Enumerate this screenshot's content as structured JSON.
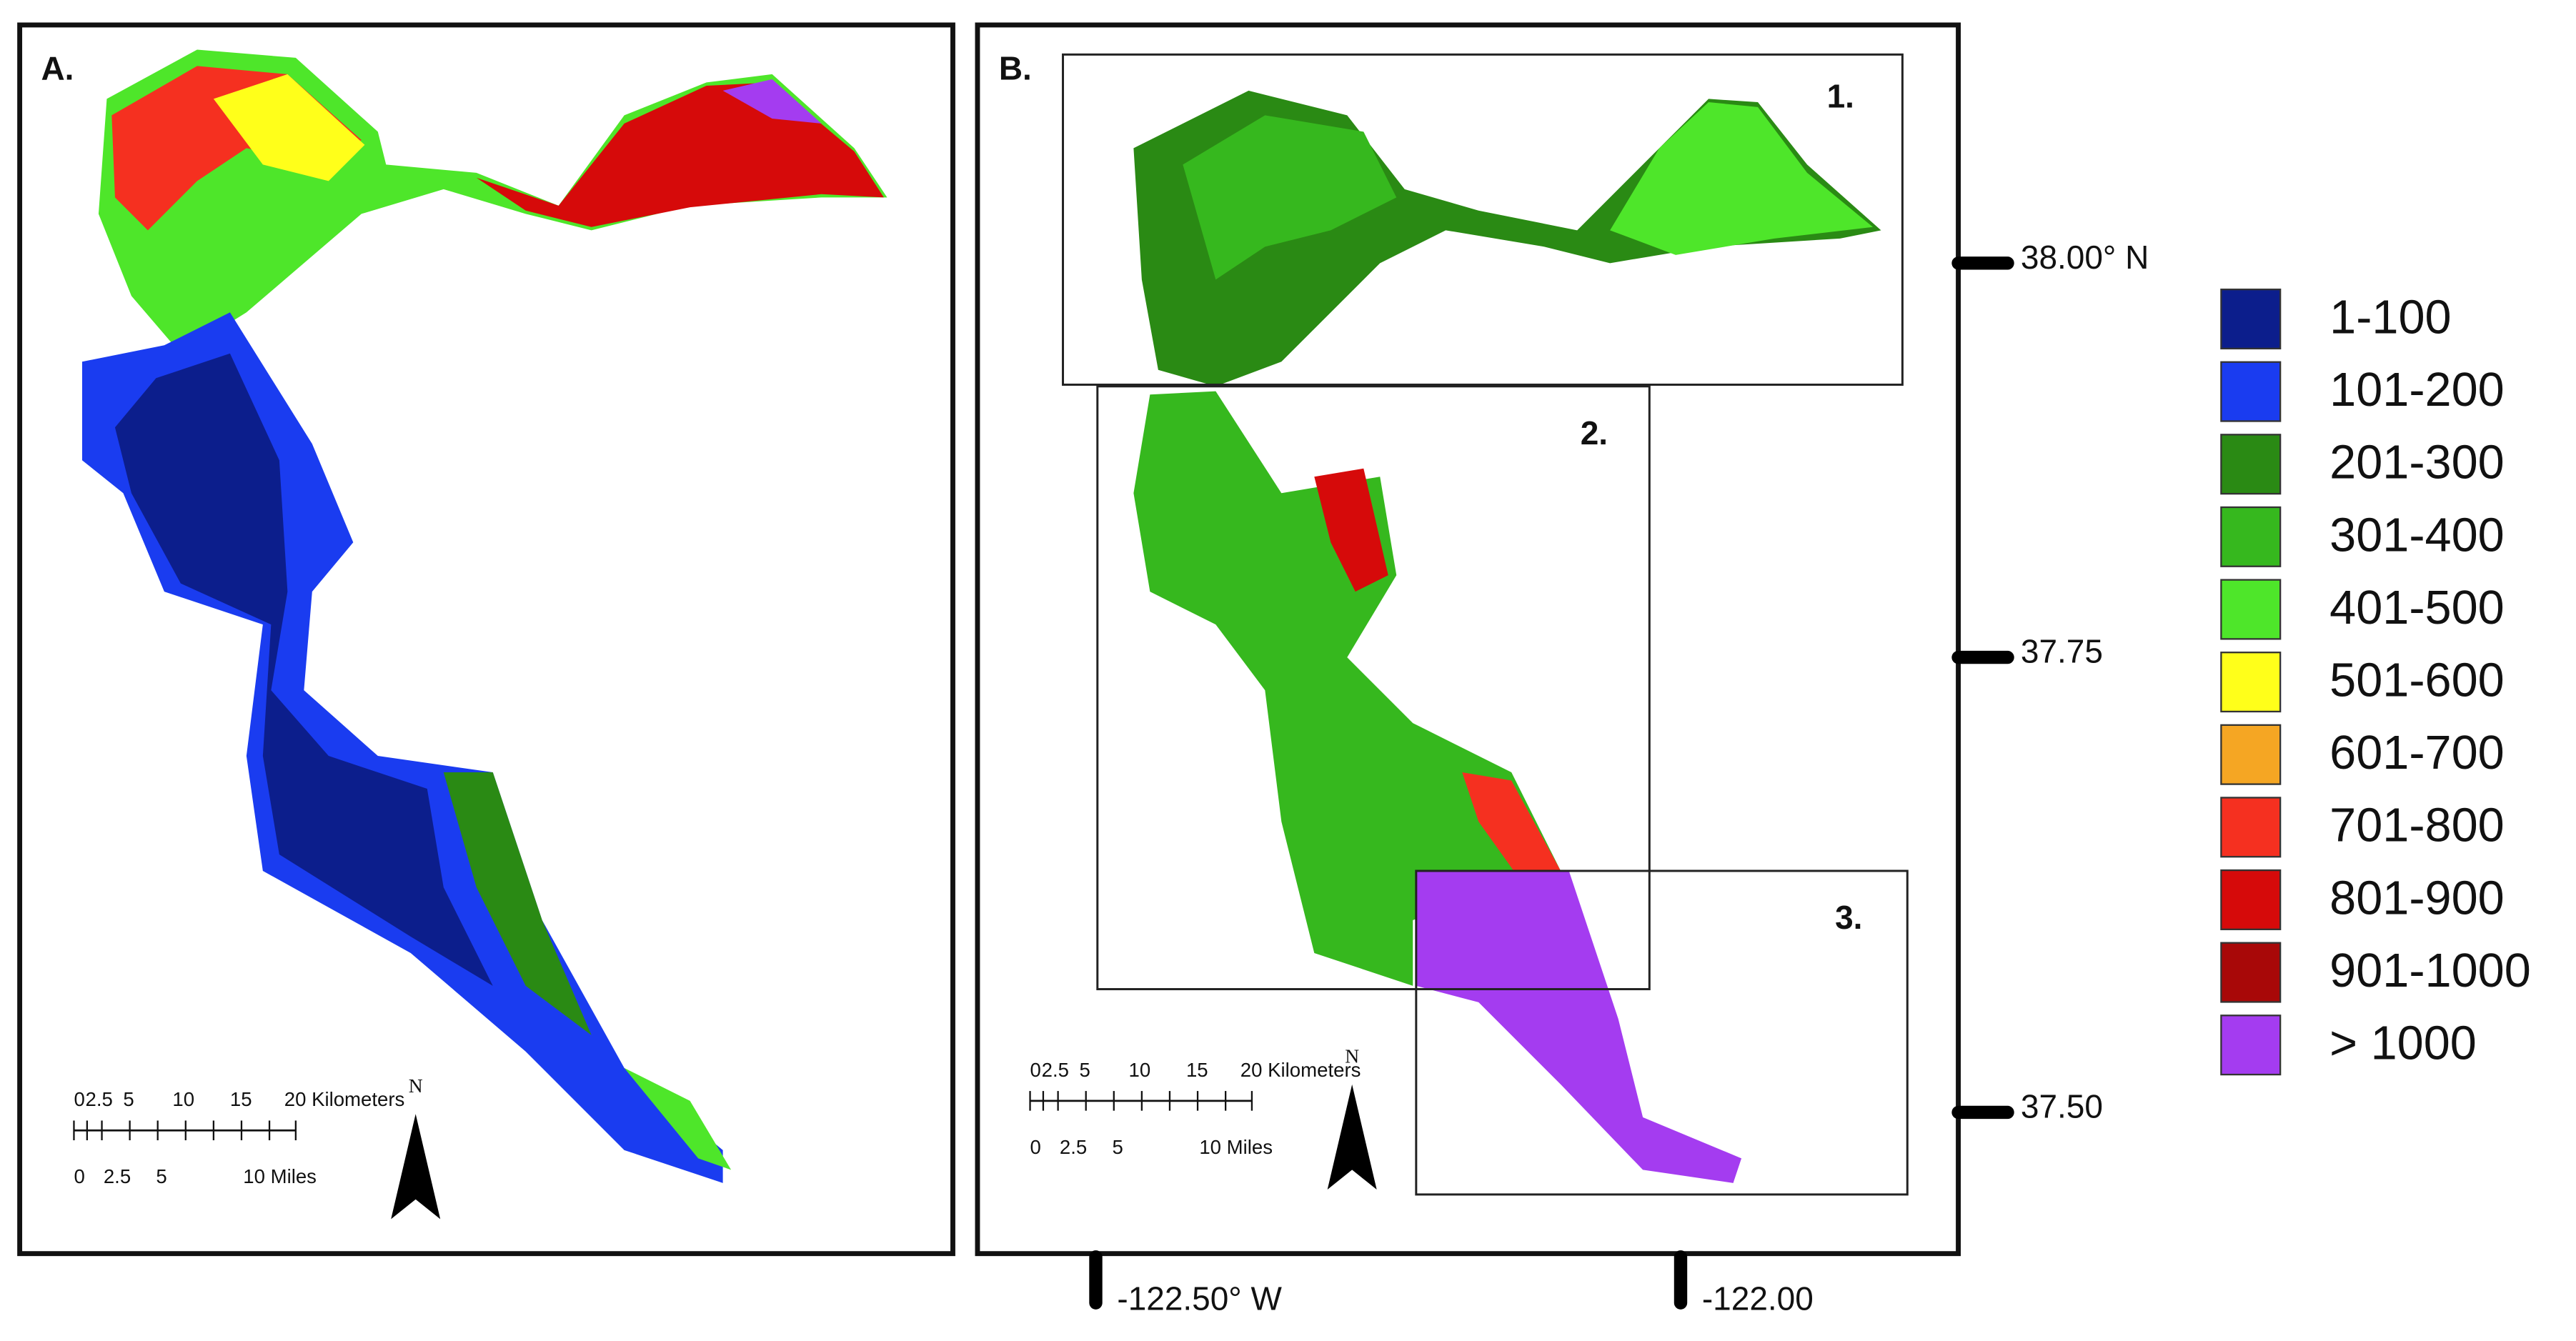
{
  "panel_a": {
    "label": "A.",
    "scale_bar": {
      "km_labels": [
        "0",
        "2.5",
        "5",
        "10",
        "15",
        "20 Kilometers"
      ],
      "mile_labels": [
        "0",
        "2.5",
        "5",
        "10 Miles"
      ]
    },
    "north": "N"
  },
  "panel_b": {
    "label": "B.",
    "boxes": [
      "1.",
      "2.",
      "3."
    ],
    "scale_bar": {
      "km_labels": [
        "0",
        "2.5",
        "5",
        "10",
        "15",
        "20 Kilometers"
      ],
      "mile_labels": [
        "0",
        "2.5",
        "5",
        "10 Miles"
      ]
    },
    "north": "N"
  },
  "latitude_labels": [
    "38.00° N",
    "37.75",
    "37.50"
  ],
  "longitude_labels": [
    "-122.50° W",
    "-122.00"
  ],
  "legend": [
    {
      "label": "1-100",
      "color": "#0c1e8c"
    },
    {
      "label": "101-200",
      "color": "#1a3cf0"
    },
    {
      "label": "201-300",
      "color": "#2a8a14"
    },
    {
      "label": "301-400",
      "color": "#36b81e"
    },
    {
      "label": "401-500",
      "color": "#4ee62a"
    },
    {
      "label": "501-600",
      "color": "#ffff1a"
    },
    {
      "label": "601-700",
      "color": "#f5a623"
    },
    {
      "label": "701-800",
      "color": "#f53020"
    },
    {
      "label": "801-900",
      "color": "#d60a0a"
    },
    {
      "label": "901-1000",
      "color": "#a80808"
    },
    {
      "label": "> 1000",
      "color": "#a43cf0"
    }
  ]
}
